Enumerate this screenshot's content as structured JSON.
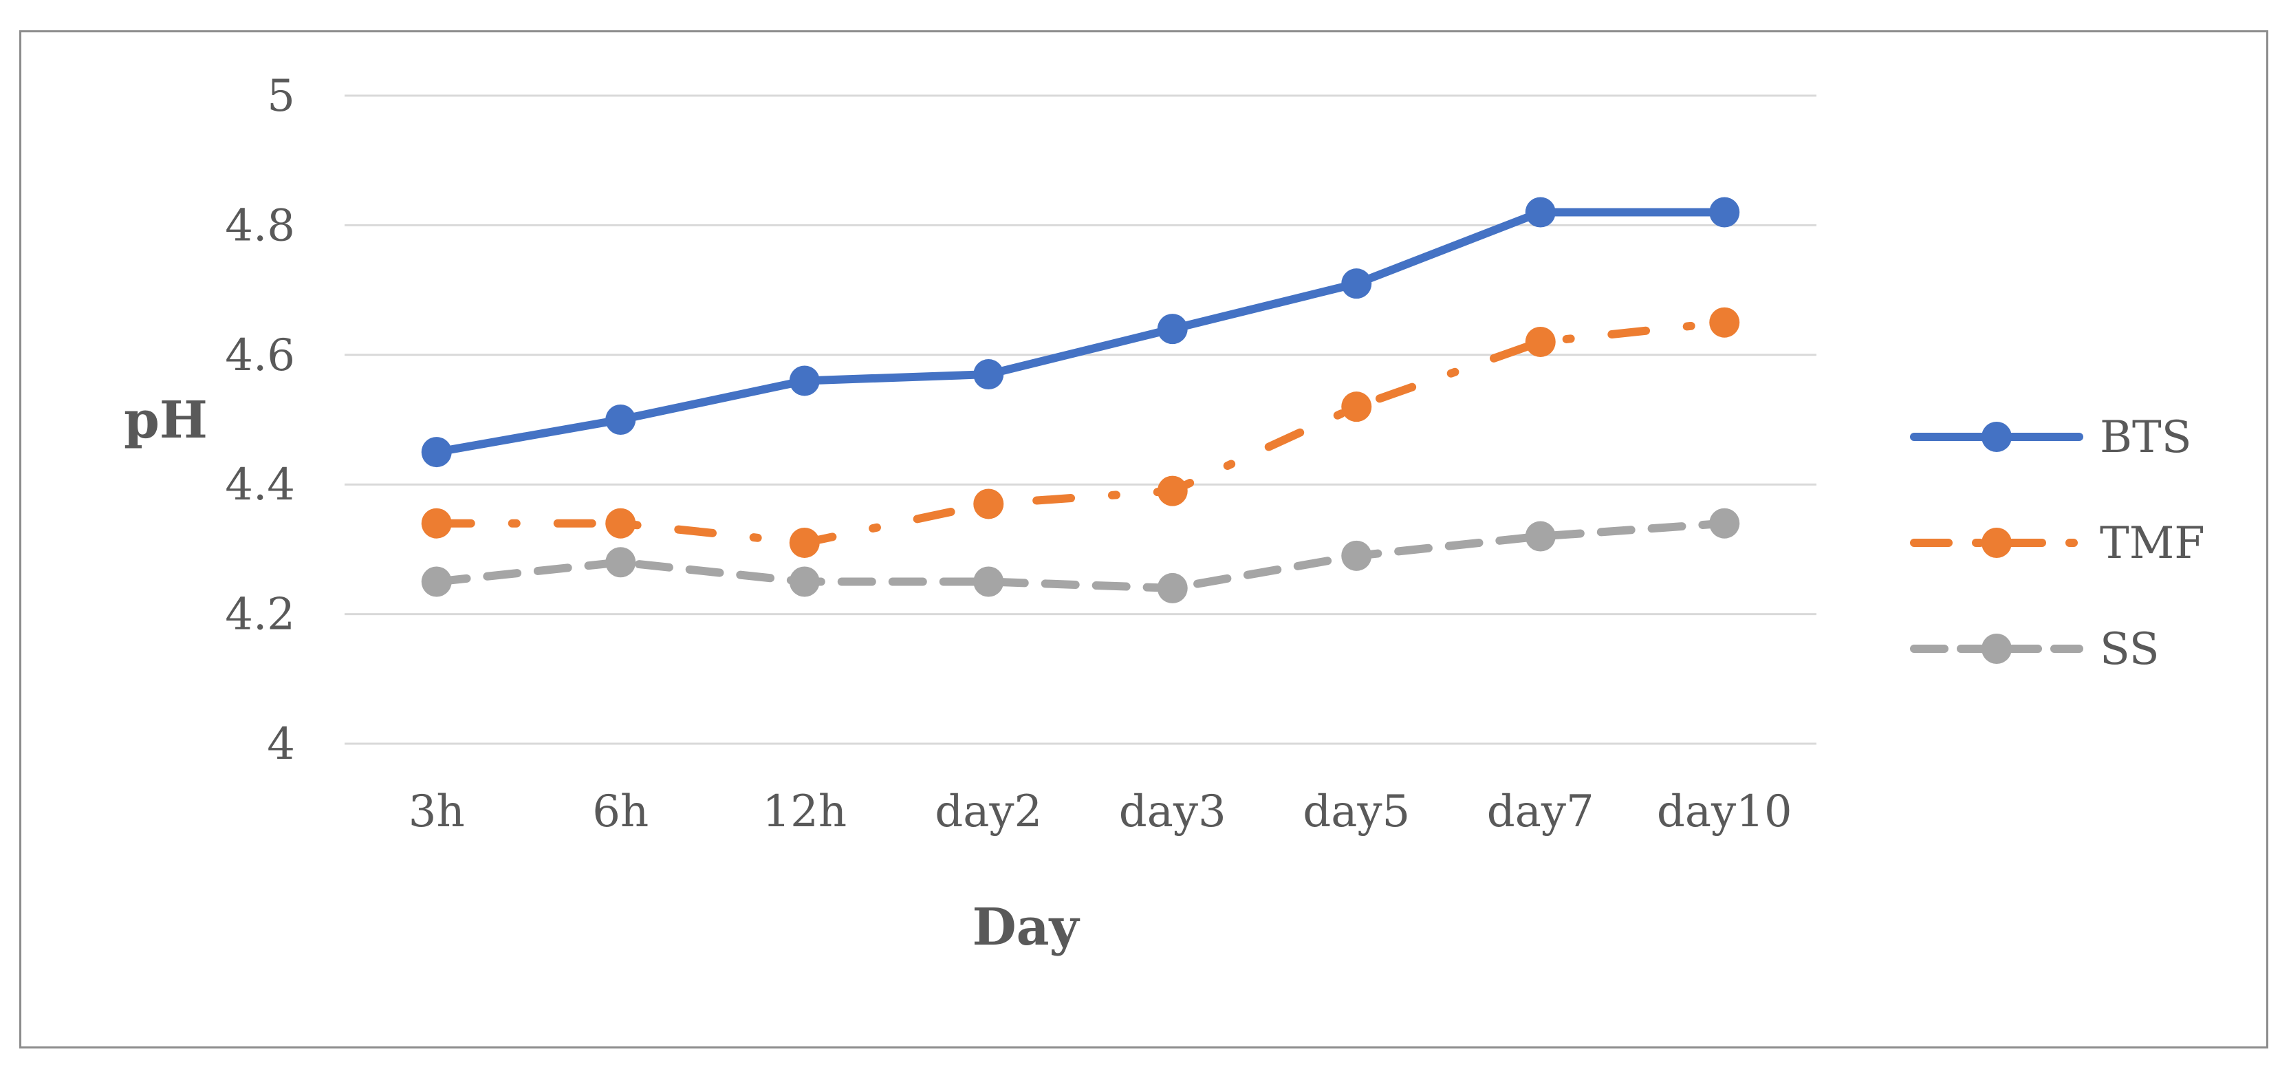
{
  "chart_data": {
    "type": "line",
    "categories": [
      "3h",
      "6h",
      "12h",
      "day2",
      "day3",
      "day5",
      "day7",
      "day10"
    ],
    "series": [
      {
        "name": "BTS",
        "values": [
          4.45,
          4.5,
          4.56,
          4.57,
          4.64,
          4.71,
          4.82,
          4.82
        ],
        "color": "#4472c4",
        "line_style": "solid"
      },
      {
        "name": "TMF",
        "values": [
          4.34,
          4.34,
          4.31,
          4.37,
          4.39,
          4.52,
          4.62,
          4.65
        ],
        "color": "#ed7d31",
        "line_style": "dash-dot"
      },
      {
        "name": "SS",
        "values": [
          4.25,
          4.28,
          4.25,
          4.25,
          4.24,
          4.29,
          4.32,
          4.34
        ],
        "color": "#a5a5a5",
        "line_style": "dashed"
      }
    ],
    "xlabel": "Day",
    "ylabel": "pH",
    "ylim": [
      4,
      5
    ],
    "yticks": [
      "4",
      "4.2",
      "4.4",
      "4.6",
      "4.8",
      "5"
    ],
    "grid": "horizontal",
    "legend": "right"
  }
}
